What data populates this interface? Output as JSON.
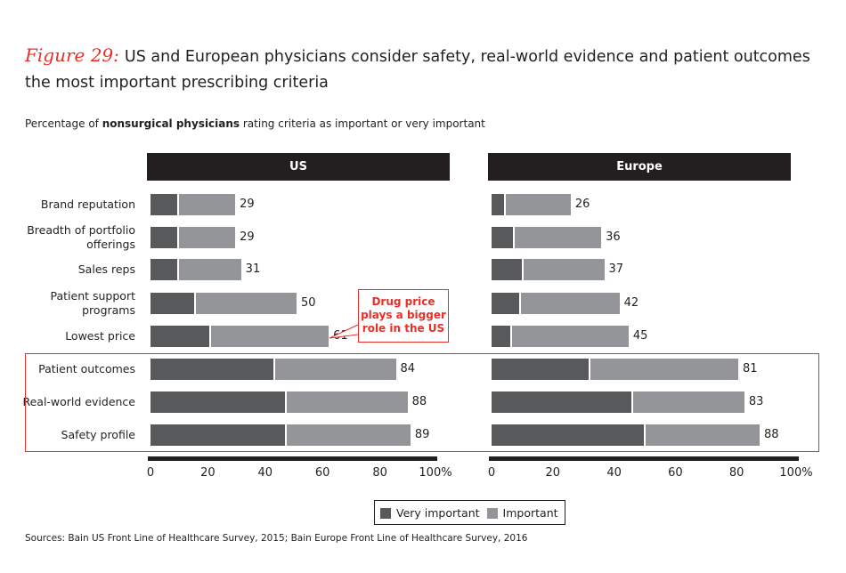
{
  "title": {
    "figure_label": "Figure 29:",
    "text": "US and European physicians consider safety, real-world evidence and patient outcomes the most important prescribing criteria"
  },
  "subtitle": {
    "prefix": "Percentage of ",
    "bold": "nonsurgical physicians",
    "suffix": " rating criteria as important or very important"
  },
  "colors": {
    "very_important": "#58595b",
    "important": "#939598",
    "highlight": "#e8302a",
    "header": "#231f20"
  },
  "chart_data": [
    {
      "type": "bar",
      "orientation": "horizontal",
      "stacked": true,
      "title": "US",
      "categories": [
        "Brand reputation",
        "Breadth of portfolio offerings",
        "Sales reps",
        "Patient support programs",
        "Lowest price",
        "Patient outcomes",
        "Real-world evidence",
        "Safety profile"
      ],
      "series": [
        {
          "name": "Very important",
          "values": [
            9,
            9,
            9,
            15,
            20,
            42,
            46,
            46
          ]
        },
        {
          "name": "Important",
          "values": [
            20,
            20,
            22,
            35,
            41,
            42,
            42,
            43
          ]
        }
      ],
      "totals": [
        29,
        29,
        31,
        50,
        61,
        84,
        88,
        89
      ],
      "xlim": [
        0,
        100
      ],
      "xticks": [
        "0",
        "20",
        "40",
        "60",
        "80",
        "100%"
      ],
      "annotation": "Drug price plays a bigger role in the US"
    },
    {
      "type": "bar",
      "orientation": "horizontal",
      "stacked": true,
      "title": "Europe",
      "categories": [
        "Brand reputation",
        "Breadth of portfolio offerings",
        "Sales reps",
        "Patient support programs",
        "Lowest price",
        "Patient outcomes",
        "Real-world evidence",
        "Safety profile"
      ],
      "series": [
        {
          "name": "Very important",
          "values": [
            4,
            7,
            10,
            9,
            6,
            32,
            46,
            50
          ]
        },
        {
          "name": "Important",
          "values": [
            22,
            29,
            27,
            33,
            39,
            49,
            37,
            38
          ]
        }
      ],
      "totals": [
        26,
        36,
        37,
        42,
        45,
        81,
        83,
        88
      ],
      "xlim": [
        0,
        100
      ],
      "xticks": [
        "0",
        "20",
        "40",
        "60",
        "80",
        "100%"
      ]
    }
  ],
  "row_labels": [
    "Brand reputation",
    "Breadth of portfolio\nofferings",
    "Sales reps",
    "Patient support\nprograms",
    "Lowest price",
    "Patient outcomes",
    "Real-world evidence",
    "Safety profile"
  ],
  "legend": {
    "very_important": "Very important",
    "important": "Important",
    "position": "bottom-center"
  },
  "sources": "Sources: Bain US Front Line of Healthcare Survey, 2015; Bain Europe Front Line of Healthcare Survey, 2016"
}
